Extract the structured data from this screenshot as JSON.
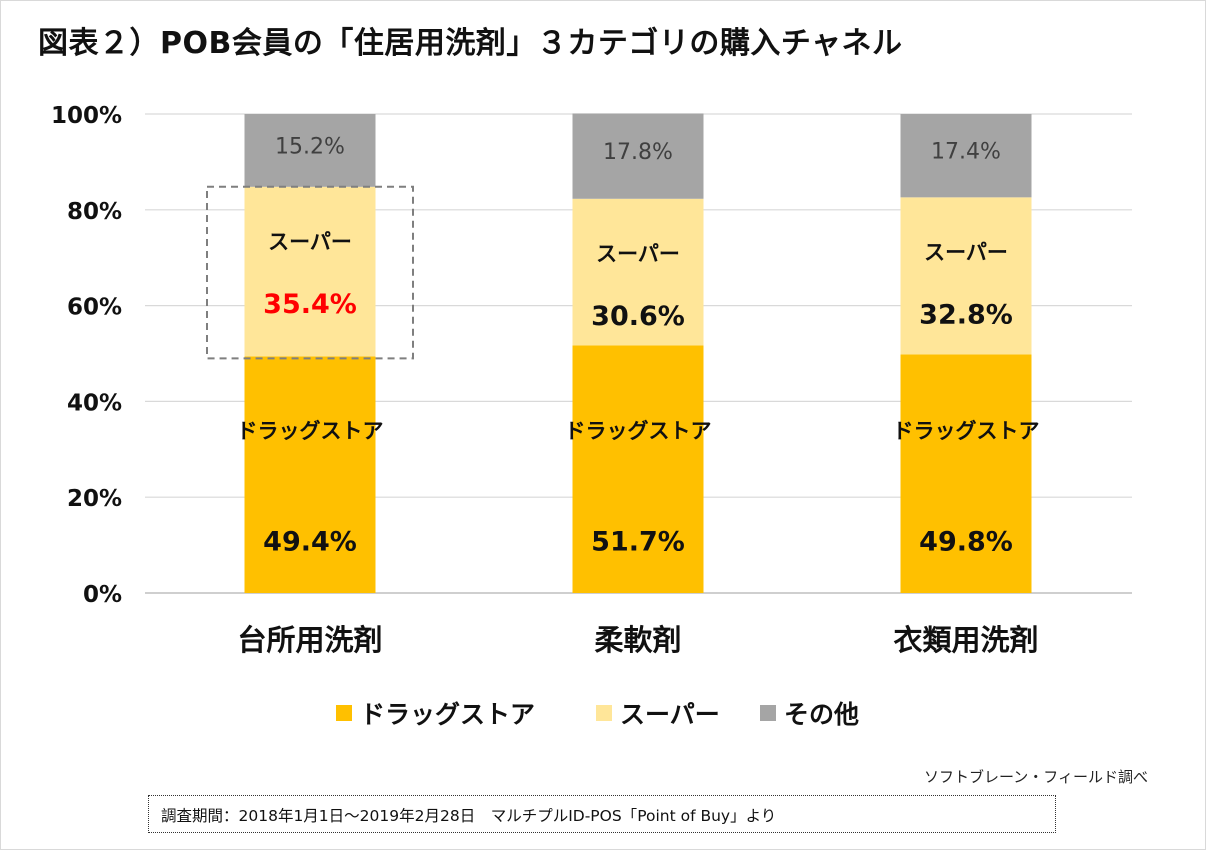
{
  "title": "図表２）POB会員の「住居用洗剤」３カテゴリの購入チャネル",
  "source_note": "ソフトブレーン・フィールド調べ",
  "period_note": "調査期間：2018年1月1日～2019年2月28日　マルチプルID-POS「Point of Buy」より",
  "colors": {
    "drug": "#FFC000",
    "super": "#FFE699",
    "other": "#A5A5A5",
    "highlight_text": "#FF0000",
    "grid": "#D9D9D9"
  },
  "chart_data": {
    "type": "bar",
    "stacked": true,
    "categories": [
      "台所用洗剤",
      "柔軟剤",
      "衣類用洗剤"
    ],
    "series": [
      {
        "name": "ドラッグストア",
        "values": [
          49.4,
          51.7,
          49.8
        ],
        "labels": [
          "49.4%",
          "51.7%",
          "49.8%"
        ],
        "segment_label": "ドラッグストア"
      },
      {
        "name": "スーパー",
        "values": [
          35.4,
          30.6,
          32.8
        ],
        "labels": [
          "35.4%",
          "30.6%",
          "32.8%"
        ],
        "segment_label": "スーパー"
      },
      {
        "name": "その他",
        "values": [
          15.2,
          17.8,
          17.4
        ],
        "labels": [
          "15.2%",
          "17.8%",
          "17.4%"
        ]
      }
    ],
    "yticks": [
      "0%",
      "20%",
      "40%",
      "60%",
      "80%",
      "100%"
    ],
    "ylim": [
      0,
      100
    ],
    "grid": true,
    "legend_position": "bottom",
    "highlight": {
      "category_index": 0,
      "series_index": 1
    }
  }
}
